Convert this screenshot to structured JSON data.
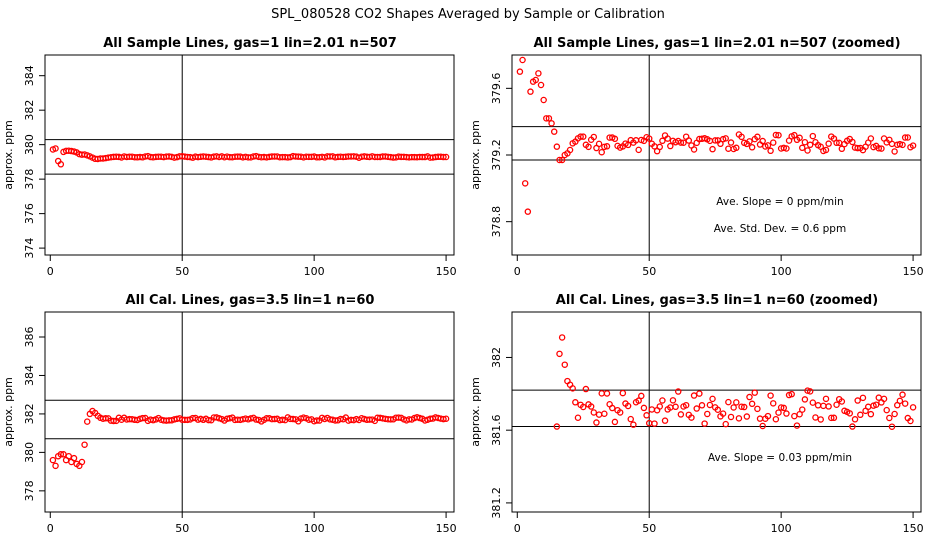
{
  "figure": {
    "suptitle": "SPL_080528  CO2 Shapes Averaged by Sample or Calibration",
    "point_color": "#ff0000",
    "line_color": "#000000"
  },
  "chart_data": [
    {
      "type": "scatter",
      "title": "All Sample Lines, gas=1 lin=2.01 n=507",
      "xlabel": "",
      "ylabel": "approx. ppm",
      "xlim": [
        -2,
        153
      ],
      "ylim": [
        373.6,
        385.2
      ],
      "xticks": [
        0,
        50,
        100,
        150
      ],
      "yticks": [
        374,
        376,
        378,
        380,
        382,
        384
      ],
      "hlines": [
        380.29,
        378.29
      ],
      "vline": 50,
      "annotations": [],
      "series": [
        {
          "base": 379.29,
          "early": [
            379.72,
            379.78,
            379.05,
            378.86,
            379.58,
            379.64,
            379.65,
            379.63,
            379.6,
            379.55,
            379.45,
            379.42,
            379.43,
            379.38,
            379.32,
            379.25,
            379.18,
            379.17,
            379.2,
            379.2,
            379.22,
            379.25,
            379.27,
            379.29,
            379.3
          ],
          "n": 150,
          "amp": 0.03
        }
      ]
    },
    {
      "type": "scatter",
      "title": "All Sample Lines, gas=1 lin=2.01 n=507 (zoomed)",
      "xlabel": "",
      "ylabel": "approx. ppm",
      "xlim": [
        -2,
        153
      ],
      "ylim": [
        378.6,
        379.8
      ],
      "xticks": [
        0,
        50,
        100,
        150
      ],
      "yticks": [
        378.8,
        379.2,
        379.6
      ],
      "hlines": [
        379.37,
        379.17
      ],
      "vline": 50,
      "annotations": [
        "Ave. Slope =  0  ppm/min",
        "Ave. Std. Dev. =  0.6  ppm"
      ],
      "series": [
        {
          "base": 379.27,
          "early": [
            379.7,
            379.77,
            379.03,
            378.86,
            379.58,
            379.64,
            379.65,
            379.69,
            379.62,
            379.53,
            379.42,
            379.42,
            379.39,
            379.34,
            379.25,
            379.17,
            379.17,
            379.2,
            379.21,
            379.23,
            379.27,
            379.28,
            379.3,
            379.31,
            379.31
          ],
          "n": 150,
          "amp": 0.035
        }
      ]
    },
    {
      "type": "scatter",
      "title": "All Cal. Lines, gas=3.5 lin=1 n=60",
      "xlabel": "",
      "ylabel": "approx. ppm",
      "xlim": [
        -2,
        153
      ],
      "ylim": [
        376.9,
        387.3
      ],
      "xticks": [
        0,
        50,
        100,
        150
      ],
      "yticks": [
        378,
        380,
        382,
        384,
        386
      ],
      "hlines": [
        382.71,
        380.71
      ],
      "vline": 50,
      "annotations": [],
      "series": [
        {
          "base": 381.72,
          "early": [
            379.6,
            379.3,
            379.8,
            379.9,
            379.9,
            379.6,
            379.8,
            379.5,
            379.7,
            379.4,
            379.3,
            379.5,
            380.4,
            381.6,
            382.0,
            382.15,
            382.05,
            381.9,
            381.8,
            381.75
          ],
          "n": 150,
          "amp": 0.07
        }
      ]
    },
    {
      "type": "scatter",
      "title": "All Cal. Lines, gas=3.5 lin=1 n=60 (zoomed)",
      "xlabel": "",
      "ylabel": "approx. ppm",
      "xlim": [
        -2,
        153
      ],
      "ylim": [
        381.15,
        382.25
      ],
      "xticks": [
        0,
        50,
        100,
        150
      ],
      "yticks": [
        381.2,
        381.6,
        382.0
      ],
      "hlines": [
        381.82,
        381.62
      ],
      "vline": 50,
      "annotations": [
        "Ave. Slope =  0.03  ppm/min"
      ],
      "series": [
        {
          "base": 381.72,
          "early": [],
          "start": 15,
          "pre": [
            381.62,
            382.02,
            382.11,
            381.96,
            381.87,
            381.85,
            381.83
          ],
          "n": 150,
          "amp": 0.07
        }
      ]
    }
  ]
}
